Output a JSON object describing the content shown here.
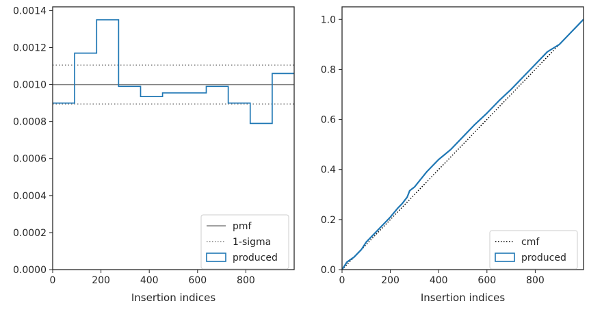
{
  "chart_data": [
    {
      "type": "histogram-step",
      "xlabel": "Insertion indices",
      "xlim": [
        0,
        1000
      ],
      "ylim": [
        0,
        0.00142
      ],
      "x_ticks": [
        0,
        200,
        400,
        600,
        800
      ],
      "x_tick_labels": [
        "0",
        "200",
        "400",
        "600",
        "800"
      ],
      "y_ticks": [
        0,
        0.0002,
        0.0004,
        0.0006,
        0.0008,
        0.001,
        0.0012,
        0.0014
      ],
      "y_tick_labels": [
        "0.0000",
        "0.0002",
        "0.0004",
        "0.0006",
        "0.0008",
        "0.0010",
        "0.0012",
        "0.0014"
      ],
      "bin_edges": [
        0,
        91,
        182,
        273,
        364,
        455,
        545,
        636,
        727,
        818,
        909,
        1000
      ],
      "produced_values": [
        0.0009,
        0.00117,
        0.00135,
        0.00099,
        0.000935,
        0.000955,
        0.000955,
        0.00099,
        0.0009,
        0.00079,
        0.00106
      ],
      "pmf_value": 0.001,
      "sigma_band": [
        0.000895,
        0.001105
      ],
      "legend": {
        "position": "lower right",
        "entries": [
          {
            "label": "pmf",
            "style": "solid",
            "color": "#808080"
          },
          {
            "label": "1-sigma",
            "style": "dotted",
            "color": "#808080"
          },
          {
            "label": "produced",
            "style": "box",
            "color": "#1f77b4"
          }
        ]
      }
    },
    {
      "type": "line",
      "xlabel": "Insertion indices",
      "xlim": [
        0,
        1000
      ],
      "ylim": [
        0,
        1.05
      ],
      "x_ticks": [
        0,
        200,
        400,
        600,
        800
      ],
      "x_tick_labels": [
        "0",
        "200",
        "400",
        "600",
        "800"
      ],
      "y_ticks": [
        0,
        0.2,
        0.4,
        0.6,
        0.8,
        1.0
      ],
      "y_tick_labels": [
        "0.0",
        "0.2",
        "0.4",
        "0.6",
        "0.8",
        "1.0"
      ],
      "cmf": {
        "x": [
          0,
          1000
        ],
        "y": [
          0,
          1.0
        ]
      },
      "produced": {
        "x": [
          0,
          20,
          50,
          80,
          100,
          150,
          200,
          230,
          250,
          270,
          280,
          300,
          350,
          400,
          450,
          500,
          550,
          600,
          650,
          700,
          750,
          800,
          850,
          900,
          950,
          1000
        ],
        "y": [
          0,
          0.03,
          0.05,
          0.08,
          0.11,
          0.16,
          0.21,
          0.245,
          0.265,
          0.29,
          0.315,
          0.33,
          0.39,
          0.44,
          0.48,
          0.53,
          0.58,
          0.625,
          0.675,
          0.72,
          0.77,
          0.82,
          0.87,
          0.9,
          0.95,
          1.0
        ]
      },
      "legend": {
        "position": "lower right",
        "entries": [
          {
            "label": "cmf",
            "style": "dotted",
            "color": "#000000"
          },
          {
            "label": "produced",
            "style": "box",
            "color": "#1f77b4"
          }
        ]
      }
    }
  ],
  "colors": {
    "produced": "#1f77b4",
    "reference": "#808080",
    "cmf": "#000000",
    "axes": "#262626"
  }
}
